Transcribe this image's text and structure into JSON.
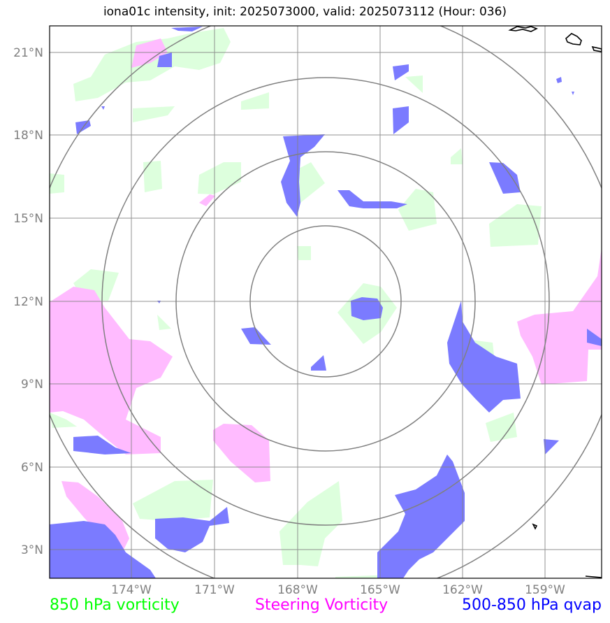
{
  "title": "iona01c intensity, init: 2025073000, valid: 2025073112 (Hour: 036)",
  "lat_labels": [
    "21°N",
    "18°N",
    "15°N",
    "12°N",
    "9°N",
    "6°N",
    "3°N"
  ],
  "lon_labels": [
    "174°W",
    "171°W",
    "168°W",
    "165°W",
    "162°W",
    "159°W"
  ],
  "legend": [
    {
      "label": "850 hPa vorticity",
      "color": "#00ff00"
    },
    {
      "label": "Steering Vorticity",
      "color": "#ff00ff"
    },
    {
      "label": "500-850 hPa qvap",
      "color": "#0000ff"
    }
  ],
  "colors": {
    "vort850_fill": "#ddffdd",
    "steering_fill": "#ffbbff",
    "qvap_fill": "#7b7bff",
    "grid": "#808080",
    "range_rings": "#808080",
    "coastline": "#000000"
  }
}
